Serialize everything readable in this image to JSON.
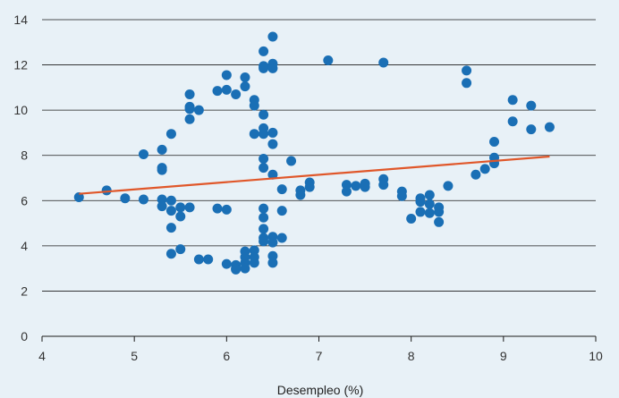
{
  "chart_data": {
    "type": "scatter",
    "title": "",
    "xlabel": "Desempleo (%)",
    "ylabel": "",
    "xlim": [
      4,
      10
    ],
    "ylim": [
      0,
      14
    ],
    "x_ticks": [
      4,
      5,
      6,
      7,
      8,
      9,
      10
    ],
    "y_ticks": [
      0,
      2,
      4,
      6,
      8,
      10,
      12,
      14
    ],
    "grid": "horizontal",
    "legend": "none",
    "colors": {
      "points": "#1a6fb5",
      "trend": "#e0572a",
      "grid": "#1a1a1a",
      "background": "#e8f1f7"
    },
    "trend_line": {
      "x": [
        4.4,
        9.5
      ],
      "y": [
        6.3,
        7.95
      ]
    },
    "series": [
      {
        "points": [
          [
            4.4,
            6.15
          ],
          [
            4.7,
            6.45
          ],
          [
            4.9,
            6.1
          ],
          [
            5.1,
            6.05
          ],
          [
            5.1,
            8.05
          ],
          [
            5.3,
            8.25
          ],
          [
            5.3,
            7.45
          ],
          [
            5.3,
            7.35
          ],
          [
            5.3,
            6.05
          ],
          [
            5.3,
            5.75
          ],
          [
            5.4,
            6.0
          ],
          [
            5.4,
            5.55
          ],
          [
            5.4,
            4.8
          ],
          [
            5.4,
            3.65
          ],
          [
            5.4,
            8.95
          ],
          [
            5.5,
            5.7
          ],
          [
            5.5,
            5.3
          ],
          [
            5.5,
            3.85
          ],
          [
            5.6,
            10.7
          ],
          [
            5.6,
            10.15
          ],
          [
            5.6,
            10.05
          ],
          [
            5.6,
            9.6
          ],
          [
            5.6,
            5.7
          ],
          [
            5.7,
            10.0
          ],
          [
            5.7,
            3.4
          ],
          [
            5.8,
            3.4
          ],
          [
            5.9,
            10.85
          ],
          [
            5.9,
            5.65
          ],
          [
            6.0,
            11.55
          ],
          [
            6.0,
            10.9
          ],
          [
            6.0,
            5.6
          ],
          [
            6.0,
            3.2
          ],
          [
            6.1,
            10.7
          ],
          [
            6.1,
            3.15
          ],
          [
            6.1,
            3.0
          ],
          [
            6.1,
            2.95
          ],
          [
            6.2,
            11.45
          ],
          [
            6.2,
            11.05
          ],
          [
            6.2,
            3.75
          ],
          [
            6.2,
            3.5
          ],
          [
            6.2,
            3.25
          ],
          [
            6.2,
            3.0
          ],
          [
            6.3,
            10.45
          ],
          [
            6.3,
            10.2
          ],
          [
            6.3,
            8.95
          ],
          [
            6.3,
            3.8
          ],
          [
            6.3,
            3.5
          ],
          [
            6.3,
            3.25
          ],
          [
            6.4,
            12.6
          ],
          [
            6.4,
            11.95
          ],
          [
            6.4,
            11.85
          ],
          [
            6.4,
            9.8
          ],
          [
            6.4,
            9.2
          ],
          [
            6.4,
            8.95
          ],
          [
            6.4,
            7.85
          ],
          [
            6.4,
            7.45
          ],
          [
            6.4,
            5.65
          ],
          [
            6.4,
            5.25
          ],
          [
            6.4,
            4.75
          ],
          [
            6.4,
            4.35
          ],
          [
            6.4,
            4.2
          ],
          [
            6.5,
            13.25
          ],
          [
            6.5,
            12.05
          ],
          [
            6.5,
            11.85
          ],
          [
            6.5,
            9.0
          ],
          [
            6.5,
            8.5
          ],
          [
            6.5,
            7.15
          ],
          [
            6.5,
            4.4
          ],
          [
            6.5,
            4.15
          ],
          [
            6.5,
            3.55
          ],
          [
            6.5,
            3.25
          ],
          [
            6.6,
            6.5
          ],
          [
            6.6,
            5.55
          ],
          [
            6.6,
            4.35
          ],
          [
            6.7,
            7.75
          ],
          [
            6.8,
            6.45
          ],
          [
            6.8,
            6.25
          ],
          [
            6.9,
            6.8
          ],
          [
            6.9,
            6.6
          ],
          [
            7.1,
            12.2
          ],
          [
            7.3,
            6.7
          ],
          [
            7.3,
            6.4
          ],
          [
            7.4,
            6.65
          ],
          [
            7.5,
            6.75
          ],
          [
            7.5,
            6.6
          ],
          [
            7.7,
            12.1
          ],
          [
            7.7,
            6.95
          ],
          [
            7.7,
            6.7
          ],
          [
            7.9,
            6.4
          ],
          [
            7.9,
            6.2
          ],
          [
            8.0,
            5.2
          ],
          [
            8.1,
            6.1
          ],
          [
            8.1,
            5.95
          ],
          [
            8.1,
            5.5
          ],
          [
            8.2,
            6.25
          ],
          [
            8.2,
            5.85
          ],
          [
            8.2,
            5.45
          ],
          [
            8.3,
            5.7
          ],
          [
            8.3,
            5.5
          ],
          [
            8.3,
            5.05
          ],
          [
            8.4,
            6.65
          ],
          [
            8.6,
            11.75
          ],
          [
            8.6,
            11.2
          ],
          [
            8.7,
            7.15
          ],
          [
            8.8,
            7.4
          ],
          [
            8.9,
            8.6
          ],
          [
            8.9,
            7.9
          ],
          [
            8.9,
            7.65
          ],
          [
            9.1,
            10.45
          ],
          [
            9.1,
            9.5
          ],
          [
            9.3,
            10.2
          ],
          [
            9.3,
            9.15
          ],
          [
            9.5,
            9.25
          ]
        ]
      }
    ]
  }
}
